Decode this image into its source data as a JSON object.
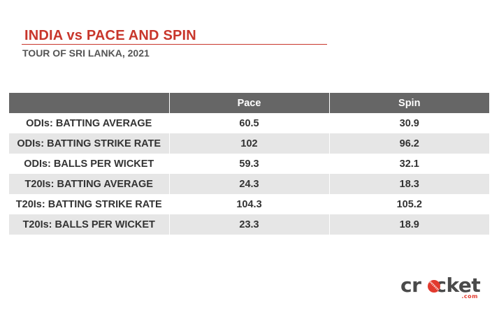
{
  "header": {
    "title": "INDIA vs PACE AND SPIN",
    "subtitle": "TOUR OF SRI LANKA, 2021"
  },
  "table": {
    "columns": [
      "",
      "Pace",
      "Spin"
    ],
    "rows": [
      {
        "metric": "ODIs: BATTING AVERAGE",
        "pace": "60.5",
        "spin": "30.9"
      },
      {
        "metric": "ODIs: BATTING STRIKE RATE",
        "pace": "102",
        "spin": "96.2"
      },
      {
        "metric": "ODIs: BALLS PER WICKET",
        "pace": "59.3",
        "spin": "32.1"
      },
      {
        "metric": "T20Is: BATTING AVERAGE",
        "pace": "24.3",
        "spin": "18.3"
      },
      {
        "metric": "T20Is: BATTING STRIKE RATE",
        "pace": "104.3",
        "spin": "105.2"
      },
      {
        "metric": "T20Is: BALLS PER WICKET",
        "pace": "23.3",
        "spin": "18.9"
      }
    ]
  },
  "logo": {
    "word_before": "cr",
    "word_after": "cket",
    "suffix": ".com",
    "icon": "cricket-ball-icon"
  },
  "colors": {
    "accent": "#c8362b",
    "header_bg": "#666666",
    "stripe_bg": "#e6e6e6",
    "logo_text": "#4a4a4a",
    "logo_accent": "#e23a2e"
  }
}
